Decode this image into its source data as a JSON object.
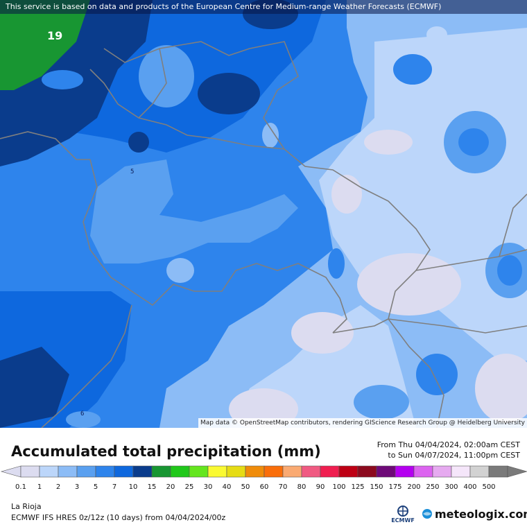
{
  "header": {
    "credit": "This service is based on data and products of the European Centre for Medium-range Weather Forecasts (ECMWF)"
  },
  "map": {
    "attribution": "Map data © OpenStreetMap contributors, rendering GIScience Research Group @ Heidelberg University",
    "value_label": "19",
    "contour_labels": [
      "5",
      "6"
    ]
  },
  "legend": {
    "title": "Accumulated total precipitation (mm)",
    "period_from": "From Thu 04/04/2024, 02:00am CEST",
    "period_to": "to Sun 04/07/2024, 11:00pm CEST",
    "ticks": [
      "0.1",
      "1",
      "2",
      "3",
      "5",
      "7",
      "10",
      "15",
      "20",
      "25",
      "30",
      "40",
      "50",
      "60",
      "70",
      "80",
      "90",
      "100",
      "125",
      "150",
      "175",
      "200",
      "250",
      "300",
      "400",
      "500"
    ],
    "colors": [
      "#dcdcf0",
      "#bcd6fa",
      "#8cbcf6",
      "#5aa0f0",
      "#2e84ec",
      "#0e68de",
      "#0a3c8c",
      "#189632",
      "#20c81a",
      "#64e61e",
      "#fafa32",
      "#e6dc14",
      "#f08c0a",
      "#fa6e0a",
      "#faaa72",
      "#f05a82",
      "#f01e50",
      "#be0014",
      "#8c0a1e",
      "#6e0a78",
      "#b400f0",
      "#dc64f0",
      "#e6aaf0",
      "#f5e6fa",
      "#d2d2d2",
      "#7a7a7a"
    ]
  },
  "footer": {
    "location": "La Rioja",
    "model": "ECMWF IFS HRES 0z/12z (10 days) from  04/04/2024/00z",
    "ecmwf_logo": "ECMWF",
    "brand": "meteologix.com"
  },
  "icons": {
    "ecmwf_logo_icon": "ecmwf-logo-icon",
    "meteologix_logo_icon": "meteologix-globe-icon"
  }
}
